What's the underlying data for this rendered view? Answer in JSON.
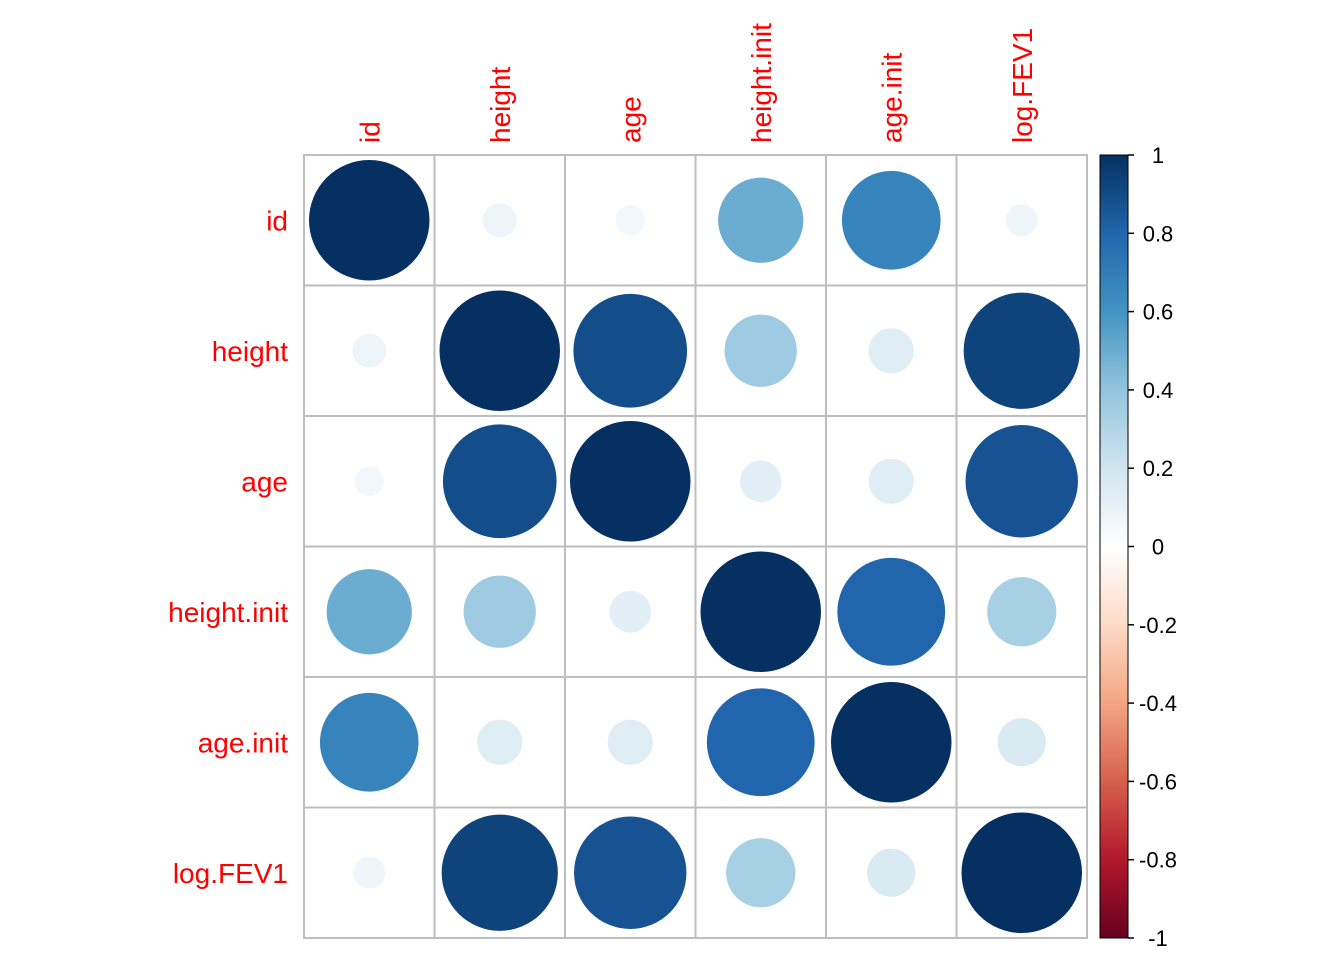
{
  "chart_data": {
    "type": "heatmap",
    "variables": [
      "id",
      "height",
      "age",
      "height.init",
      "age.init",
      "log.FEV1"
    ],
    "matrix": [
      [
        1.0,
        0.08,
        0.06,
        0.5,
        0.67,
        0.07
      ],
      [
        0.08,
        1.0,
        0.89,
        0.36,
        0.14,
        0.93
      ],
      [
        0.06,
        0.89,
        1.0,
        0.12,
        0.14,
        0.87
      ],
      [
        0.5,
        0.36,
        0.12,
        1.0,
        0.8,
        0.33
      ],
      [
        0.67,
        0.14,
        0.14,
        0.8,
        1.0,
        0.16
      ],
      [
        0.07,
        0.93,
        0.87,
        0.33,
        0.16,
        1.0
      ]
    ],
    "legend": {
      "placement": "right",
      "range": [
        -1,
        1
      ],
      "ticks": [
        "1",
        "0.8",
        "0.6",
        "0.4",
        "0.2",
        "0",
        "-0.2",
        "-0.4",
        "-0.6",
        "-0.8",
        "-1"
      ],
      "colors": [
        "#67001F",
        "#B2182B",
        "#D6604D",
        "#F4A582",
        "#FDDBC7",
        "#FFFFFF",
        "#D1E5F0",
        "#92C5DE",
        "#4393C3",
        "#2166AC",
        "#053061"
      ]
    },
    "label_color": "#FF0000",
    "grid": true
  }
}
